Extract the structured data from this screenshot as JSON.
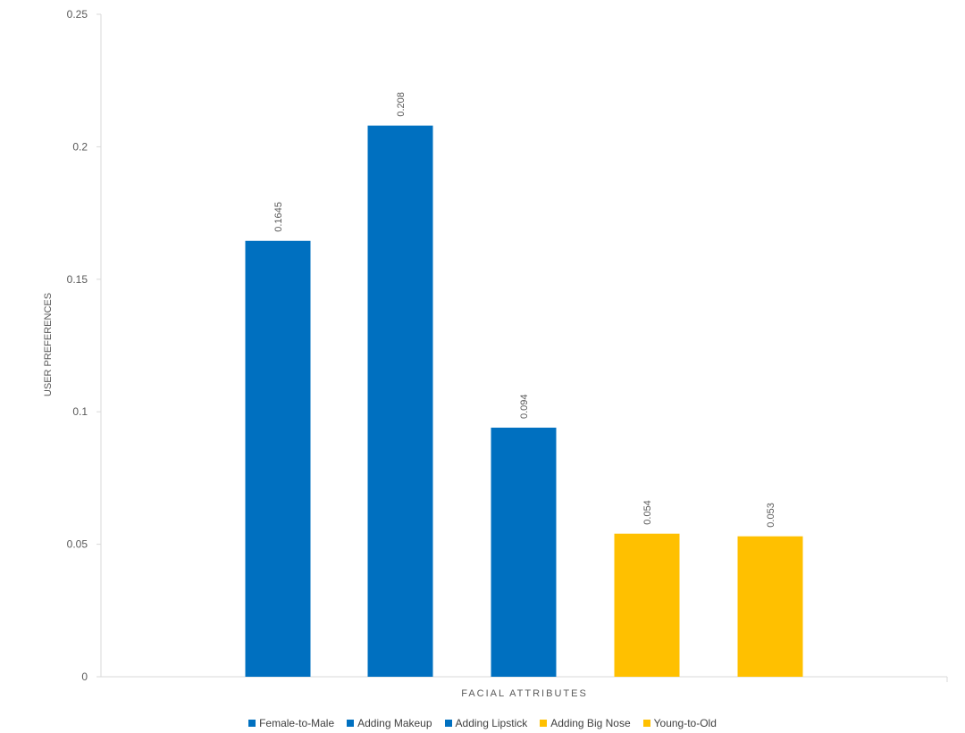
{
  "chart_data": {
    "type": "bar",
    "categories": [
      "Female-to-Male",
      "Adding Makeup",
      "Adding Lipstick",
      "Adding Big Nose",
      "Young-to-Old"
    ],
    "values": [
      0.1645,
      0.208,
      0.094,
      0.054,
      0.053
    ],
    "value_labels": [
      "0.1645",
      "0.208",
      "0.094",
      "0.054",
      "0.053"
    ],
    "colors": [
      "#0070C0",
      "#0070C0",
      "#0070C0",
      "#FFC000",
      "#FFC000"
    ],
    "xlabel": "FACIAL ATTRIBUTES",
    "ylabel": "USER PREFERENCES",
    "ylim": [
      0,
      0.25
    ],
    "yticks": [
      0,
      0.05,
      0.1,
      0.15,
      0.2,
      0.25
    ],
    "ytick_labels": [
      "0",
      "0.05",
      "0.1",
      "0.15",
      "0.2",
      "0.25"
    ],
    "grid": false,
    "legend_position": "bottom",
    "legend": [
      {
        "label": "Female-to-Male",
        "color": "#0070C0"
      },
      {
        "label": "Adding Makeup",
        "color": "#0070C0"
      },
      {
        "label": "Adding Lipstick",
        "color": "#0070C0"
      },
      {
        "label": "Adding Big Nose",
        "color": "#FFC000"
      },
      {
        "label": "Young-to-Old",
        "color": "#FFC000"
      }
    ]
  }
}
